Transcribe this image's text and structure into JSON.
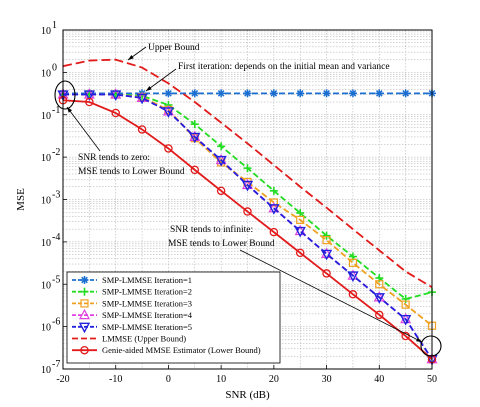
{
  "chart_data": {
    "type": "line",
    "xlabel": "SNR (dB)",
    "ylabel": "MSE",
    "xlim": [
      -20,
      50
    ],
    "ylim_log10": [
      -7,
      1
    ],
    "y_scale": "log",
    "grid": true,
    "legend_position": "bottom-left",
    "x_ticks": [
      "-20",
      "-10",
      "0",
      "10",
      "20",
      "30",
      "40",
      "50"
    ],
    "y_ticks": [
      {
        "exp": -7,
        "label": "10",
        "sup": "-7"
      },
      {
        "exp": -6,
        "label": "10",
        "sup": "-6"
      },
      {
        "exp": -5,
        "label": "10",
        "sup": "-5"
      },
      {
        "exp": -4,
        "label": "10",
        "sup": "-4"
      },
      {
        "exp": -3,
        "label": "10",
        "sup": "-3"
      },
      {
        "exp": -2,
        "label": "10",
        "sup": "-2"
      },
      {
        "exp": -1,
        "label": "10",
        "sup": "-1"
      },
      {
        "exp": 0,
        "label": "10",
        "sup": "0"
      },
      {
        "exp": 1,
        "label": "10",
        "sup": "1"
      }
    ],
    "x": [
      -20,
      -15,
      -10,
      -5,
      0,
      5,
      10,
      15,
      20,
      25,
      30,
      35,
      40,
      45,
      50
    ],
    "series": [
      {
        "name": "SMP-LMMSE Iteration=1",
        "color": "#1a6fd1",
        "marker": "star",
        "dash": "dashed",
        "values": [
          0.32,
          0.32,
          0.32,
          0.32,
          0.32,
          0.32,
          0.32,
          0.32,
          0.32,
          0.32,
          0.32,
          0.32,
          0.32,
          0.32,
          0.32
        ]
      },
      {
        "name": "SMP-LMMSE Iteration=2",
        "color": "#22dd22",
        "marker": "plus",
        "dash": "dashed",
        "values": [
          0.3,
          0.3,
          0.3,
          0.28,
          0.17,
          0.06,
          0.018,
          0.0055,
          0.0016,
          0.00048,
          0.00014,
          4.5e-05,
          1.4e-05,
          4.5e-06,
          6.5e-06
        ]
      },
      {
        "name": "SMP-LMMSE Iteration=3",
        "color": "#f0a020",
        "marker": "square",
        "dash": "dashed",
        "values": [
          0.3,
          0.3,
          0.3,
          0.26,
          0.13,
          0.028,
          0.0075,
          0.0026,
          0.00085,
          0.00033,
          0.00011,
          3.2e-05,
          1e-05,
          3.3e-06,
          1.05e-06
        ]
      },
      {
        "name": "SMP-LMMSE Iteration=4",
        "color": "#e040e0",
        "marker": "triangle-up",
        "dash": "dashed",
        "values": [
          0.3,
          0.3,
          0.3,
          0.25,
          0.12,
          0.03,
          0.0085,
          0.0022,
          0.00062,
          0.00018,
          5.2e-05,
          1.6e-05,
          4.9e-06,
          1.5e-06,
          1.7e-07
        ]
      },
      {
        "name": "SMP-LMMSE Iteration=5",
        "color": "#2222dd",
        "marker": "triangle-down",
        "dash": "dashed",
        "values": [
          0.3,
          0.3,
          0.3,
          0.25,
          0.12,
          0.03,
          0.0085,
          0.0022,
          0.00062,
          0.00018,
          5.2e-05,
          1.6e-05,
          4.9e-06,
          1.5e-06,
          1.7e-07
        ]
      },
      {
        "name": "LMMSE (Upper Bound)",
        "color": "#e21a1a",
        "marker": "none",
        "dash": "longdash",
        "values": [
          1.4,
          1.9,
          2.0,
          1.3,
          0.55,
          0.2,
          0.065,
          0.021,
          0.0065,
          0.002,
          0.00064,
          0.0002,
          6.3e-05,
          2e-05,
          8.5e-06
        ]
      },
      {
        "name": "Genie-aided MMSE Estimator (Lower Bound)",
        "color": "#e21a1a",
        "marker": "circle",
        "dash": "solid",
        "values": [
          0.22,
          0.2,
          0.11,
          0.045,
          0.016,
          0.005,
          0.0016,
          0.00052,
          0.00017,
          5.5e-05,
          1.8e-05,
          5.8e-06,
          1.9e-06,
          6e-07,
          1.7e-07
        ]
      }
    ],
    "annotations": [
      {
        "id": "upper",
        "text": "Upper Bound"
      },
      {
        "id": "first",
        "text": "First iteration: depends on the initial mean and variance"
      },
      {
        "id": "zero1",
        "text": "SNR tends to zero:"
      },
      {
        "id": "zero2",
        "text": "MSE tends to Lower Bound"
      },
      {
        "id": "inf1",
        "text": "SNR tends to infinite:"
      },
      {
        "id": "inf2",
        "text": "MSE tends to Lower Bound"
      }
    ]
  }
}
